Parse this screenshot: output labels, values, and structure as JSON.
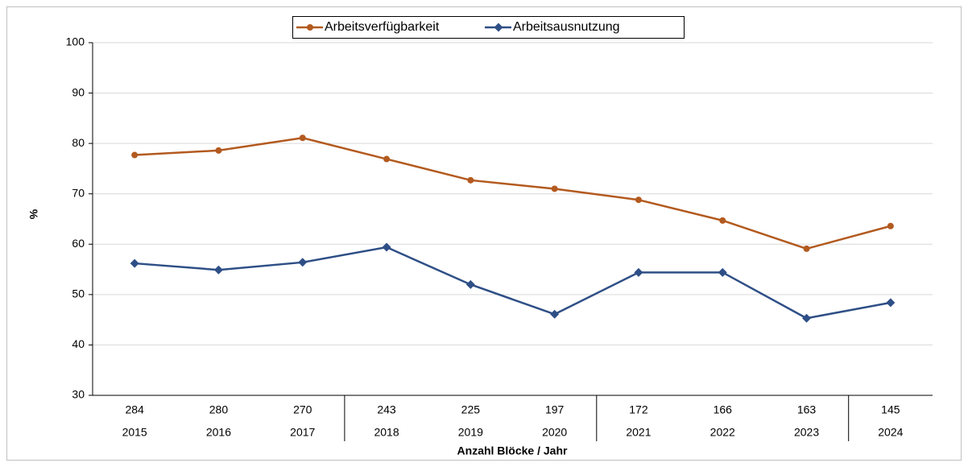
{
  "chart_data": {
    "type": "line",
    "y_label": "%",
    "x_label": "Anzahl Blöcke / Jahr",
    "categories": [
      "2015",
      "2016",
      "2017",
      "2018",
      "2019",
      "2020",
      "2021",
      "2022",
      "2023",
      "2024"
    ],
    "block_counts": [
      284,
      280,
      270,
      243,
      225,
      197,
      172,
      166,
      163,
      145
    ],
    "series": [
      {
        "name": "Arbeitsverfügbarkeit",
        "color": "#b35a1f",
        "marker": "circle",
        "values": [
          77.7,
          78.6,
          81.1,
          76.9,
          72.7,
          71.0,
          68.8,
          64.7,
          59.1,
          63.6
        ]
      },
      {
        "name": "Arbeitsausnutzung",
        "color": "#2e4f86",
        "marker": "diamond",
        "values": [
          56.2,
          54.9,
          56.4,
          59.4,
          52.0,
          46.1,
          54.4,
          54.4,
          45.3,
          48.4
        ]
      }
    ],
    "ylim": [
      30,
      100
    ],
    "yticks": [
      30,
      40,
      50,
      60,
      70,
      80,
      90,
      100
    ],
    "grid": true,
    "legend": "top"
  }
}
